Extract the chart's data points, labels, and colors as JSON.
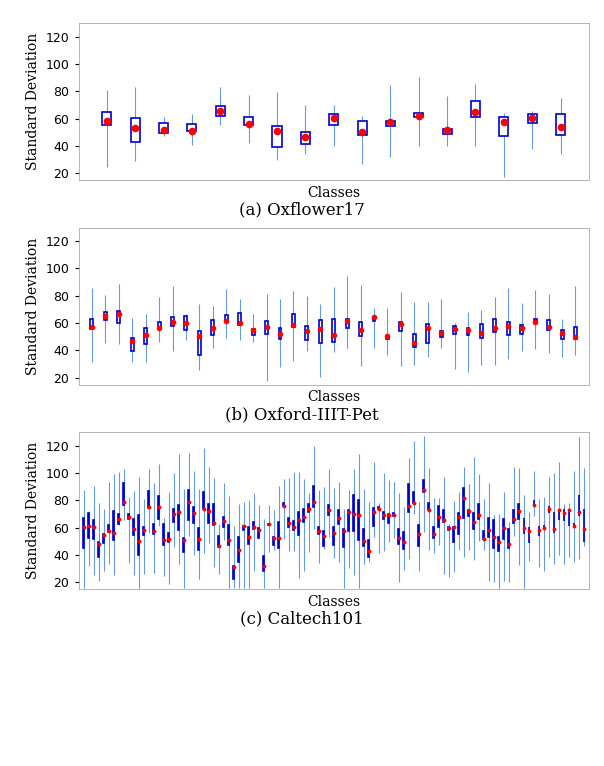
{
  "title_a": "(a) Oxflower17",
  "title_b": "(b) Oxford-IIIT-Pet",
  "title_c": "(c) Caltech101",
  "xlabel": "Classes",
  "ylabel": "Standard Deviation",
  "ylim": [
    15,
    130
  ],
  "yticks": [
    20,
    40,
    60,
    80,
    100,
    120
  ],
  "bg_color": "#ffffff",
  "box_color": "#0000cc",
  "whisker_color": "#6699dd",
  "median_dot_color": "#ff0000",
  "n_oxflower": 17,
  "n_pet": 37,
  "n_caltech": 101,
  "fig_width": 6.04,
  "fig_height": 7.66,
  "title_fontsize": 12,
  "axis_label_fontsize": 10,
  "tick_fontsize": 9,
  "subplot_configs": [
    {
      "n": 17,
      "seed": 42,
      "med_base": 55,
      "med_std": 7,
      "iqr_base": 8,
      "iqr_std": 4,
      "whi_base": 18,
      "whi_std": 8
    },
    {
      "n": 37,
      "seed": 17,
      "med_base": 56,
      "med_std": 5,
      "iqr_base": 7,
      "iqr_std": 3,
      "whi_base": 16,
      "whi_std": 7
    },
    {
      "n": 101,
      "seed": 99,
      "med_base": 62,
      "med_std": 10,
      "iqr_base": 10,
      "iqr_std": 5,
      "whi_base": 22,
      "whi_std": 10
    }
  ]
}
